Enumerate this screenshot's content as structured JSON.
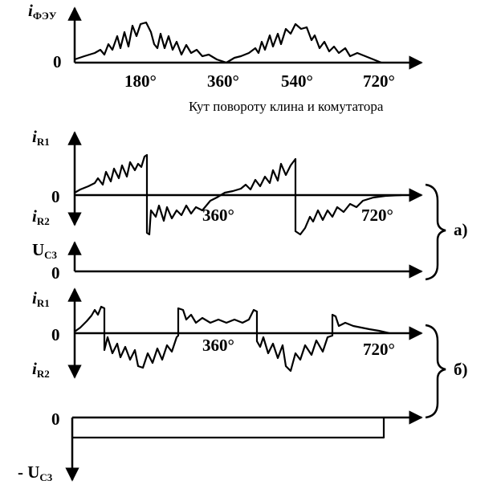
{
  "panel1": {
    "y_label": {
      "main": "i",
      "sub": "ФЭУ"
    },
    "zero": "0",
    "ticks": [
      "180°",
      "360°",
      "540°",
      "720°"
    ],
    "x_label": "Кут повороту клина и комутатора"
  },
  "panel_a": {
    "upper_label": {
      "main": "i",
      "sub": "R1"
    },
    "zero": "0",
    "lower_label": {
      "main": "i",
      "sub": "R2"
    },
    "ticks": [
      "360°",
      "720°"
    ],
    "u_label": {
      "main": "U",
      "sub": "C3"
    },
    "u_zero": "0",
    "bracket": "а)"
  },
  "panel_b": {
    "upper_label": {
      "main": "i",
      "sub": "R1"
    },
    "zero": "0",
    "lower_label": {
      "main": "i",
      "sub": "R2"
    },
    "ticks": [
      "360°",
      "720°"
    ],
    "u_zero": "0",
    "u_label": {
      "main": "- U",
      "sub": "C3"
    },
    "bracket": "б)"
  }
}
